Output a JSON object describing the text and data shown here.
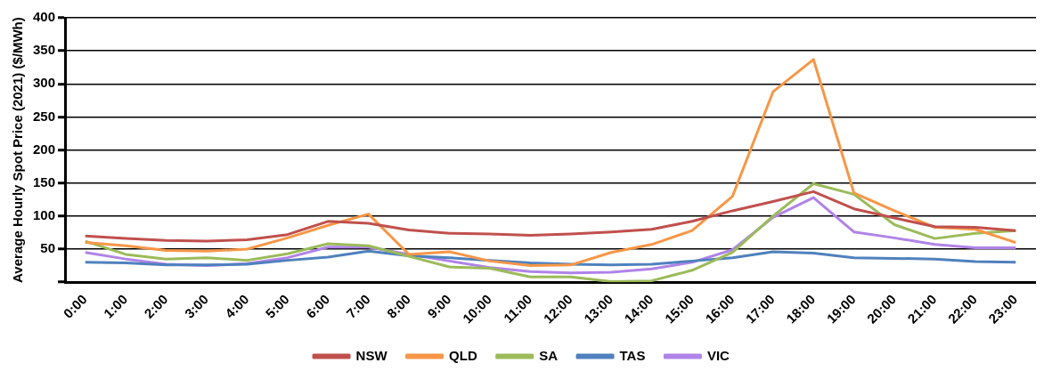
{
  "chart_data": {
    "type": "line",
    "ylabel": "Average Hourly Spot Price (2021) ($/MWh)",
    "categories": [
      "0:00",
      "1:00",
      "2:00",
      "3:00",
      "4:00",
      "5:00",
      "6:00",
      "7:00",
      "8:00",
      "9:00",
      "10:00",
      "11:00",
      "12:00",
      "13:00",
      "14:00",
      "15:00",
      "16:00",
      "17:00",
      "18:00",
      "19:00",
      "20:00",
      "21:00",
      "22:00",
      "23:00"
    ],
    "series": [
      {
        "name": "NSW",
        "color": "#c0504d",
        "values": [
          70,
          66,
          63,
          62,
          64,
          72,
          92,
          89,
          79,
          74,
          73,
          71,
          73,
          76,
          80,
          92,
          108,
          122,
          137,
          111,
          97,
          84,
          83,
          78
        ]
      },
      {
        "name": "QLD",
        "color": "#f79646",
        "values": [
          60,
          55,
          48,
          47,
          50,
          67,
          86,
          103,
          42,
          46,
          32,
          25,
          26,
          45,
          57,
          78,
          130,
          288,
          337,
          135,
          108,
          83,
          80,
          60
        ]
      },
      {
        "name": "SA",
        "color": "#9bbb59",
        "values": [
          62,
          42,
          35,
          37,
          33,
          43,
          58,
          55,
          39,
          23,
          21,
          8,
          8,
          1,
          2,
          18,
          45,
          100,
          149,
          133,
          87,
          66,
          74,
          78
        ]
      },
      {
        "name": "TAS",
        "color": "#4f81bd",
        "values": [
          30,
          29,
          26,
          26,
          27,
          33,
          38,
          47,
          40,
          37,
          33,
          29,
          27,
          26,
          27,
          32,
          37,
          46,
          44,
          37,
          36,
          35,
          31,
          30
        ]
      },
      {
        "name": "VIC",
        "color": "#b083e8",
        "values": [
          45,
          35,
          27,
          25,
          28,
          37,
          53,
          53,
          42,
          32,
          22,
          16,
          14,
          15,
          20,
          30,
          49,
          98,
          128,
          76,
          67,
          57,
          52,
          52
        ]
      }
    ],
    "ylim": [
      0,
      400
    ],
    "yticks": [
      {
        "value": 0,
        "label": null
      },
      50,
      100,
      150,
      200,
      250,
      300,
      350,
      400
    ],
    "grid": "y",
    "legend": "bottom",
    "marker": "none",
    "line_style": "solid"
  }
}
